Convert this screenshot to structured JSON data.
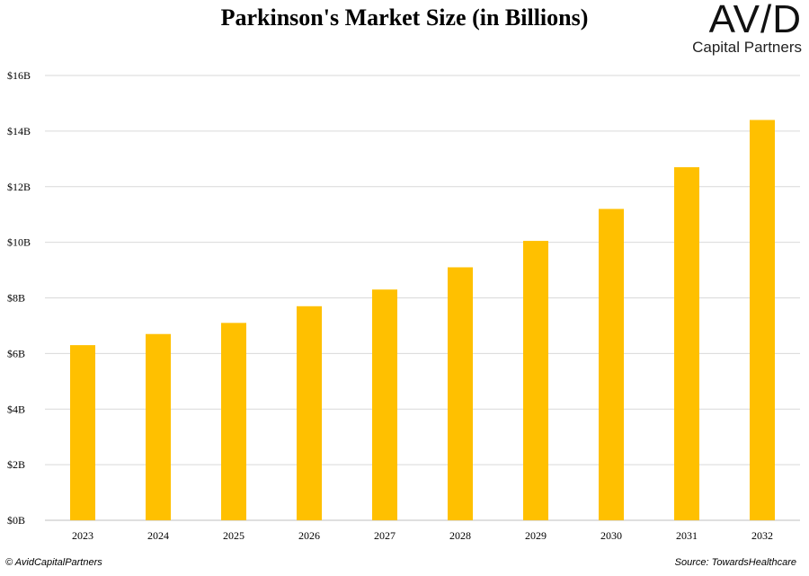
{
  "header": {
    "title": "Parkinson's Market Size (in Billions)"
  },
  "logo": {
    "mark": "AV/D",
    "subtitle": "Capital Partners"
  },
  "footer": {
    "copyright": "© AvidCapitalPartners",
    "source": "Source: TowardsHealthcare"
  },
  "colors": {
    "bar": "#FFC000",
    "grid": "#D9D9D9"
  },
  "chart_data": {
    "type": "bar",
    "title": "Parkinson's Market Size (in Billions)",
    "xlabel": "",
    "ylabel": "",
    "categories": [
      "2023",
      "2024",
      "2025",
      "2026",
      "2027",
      "2028",
      "2029",
      "2030",
      "2031",
      "2032"
    ],
    "values": [
      6.3,
      6.7,
      7.1,
      7.7,
      8.3,
      9.1,
      10.05,
      11.2,
      12.7,
      14.4
    ],
    "ylim": [
      0,
      16
    ],
    "yticks": [
      0,
      2,
      4,
      6,
      8,
      10,
      12,
      14,
      16
    ],
    "ytick_labels": [
      "$0B",
      "$2B",
      "$4B",
      "$6B",
      "$8B",
      "$10B",
      "$12B",
      "$14B",
      "$16B"
    ],
    "grid": true,
    "legend": "none"
  }
}
